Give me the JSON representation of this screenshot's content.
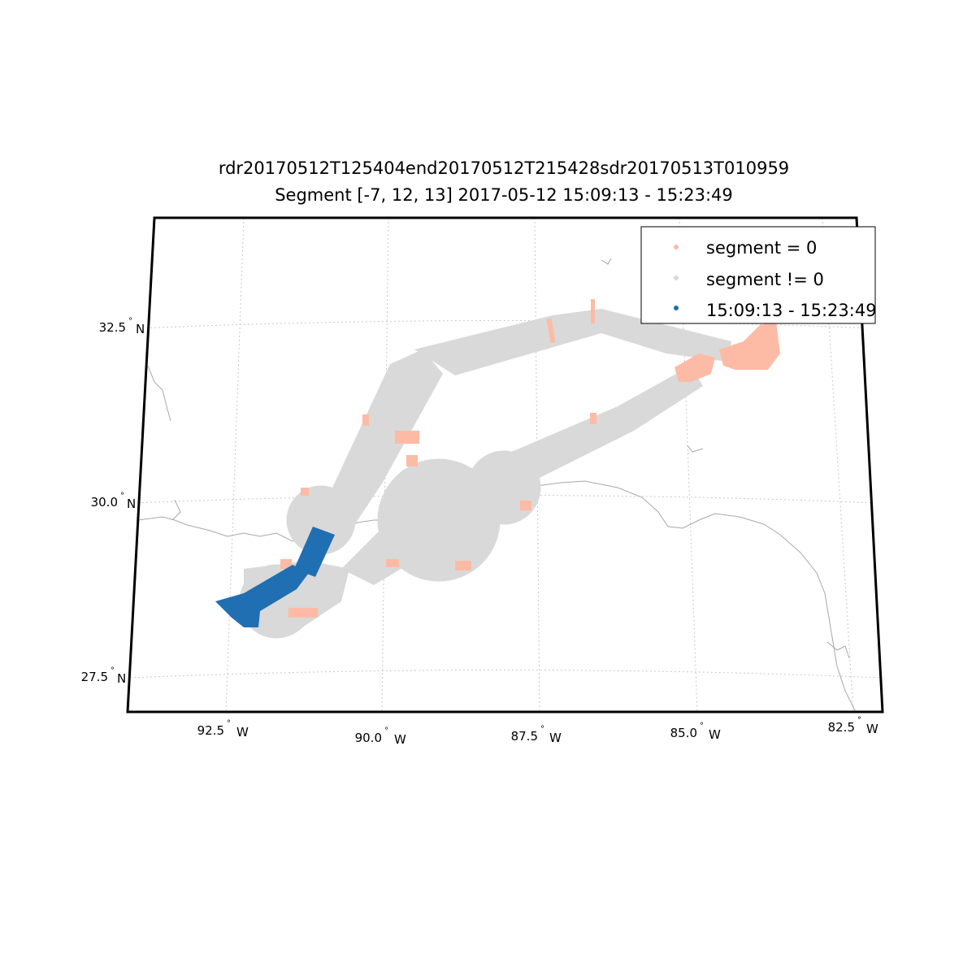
{
  "figure": {
    "title": "rdr20170512T125404end20170512T215428sdr20170513T010959",
    "subtitle": "Segment [-7, 12, 13] 2017-05-12 15:09:13 - 15:23:49"
  },
  "map": {
    "projection": "conic",
    "lon_range": [
      -94.0,
      -82.5
    ],
    "lat_range": [
      27.0,
      33.5
    ],
    "gridlines": "dotted",
    "lat_ticks": [
      {
        "label": "27.5",
        "hemi": "N"
      },
      {
        "label": "30.0",
        "hemi": "N"
      },
      {
        "label": "32.5",
        "hemi": "N"
      }
    ],
    "lon_ticks": [
      {
        "label": "92.5",
        "hemi": "W"
      },
      {
        "label": "90.0",
        "hemi": "W"
      },
      {
        "label": "87.5",
        "hemi": "W"
      },
      {
        "label": "85.0",
        "hemi": "W"
      },
      {
        "label": "82.5",
        "hemi": "W"
      }
    ]
  },
  "legend": {
    "placement": "top-right",
    "items": [
      {
        "label": "segment = 0",
        "color": "#fdbba5"
      },
      {
        "label": "segment != 0",
        "color": "#d9d9d9"
      },
      {
        "label": "15:09:13 - 15:23:49",
        "color": "#1f6fb2"
      }
    ]
  },
  "colors": {
    "segment_zero": "#fdbba5",
    "segment_nonzero": "#d9d9d9",
    "highlight": "#1f6fb2",
    "coast": "#a8a8a8",
    "grid": "#c8c8c8",
    "frame": "#000000"
  }
}
